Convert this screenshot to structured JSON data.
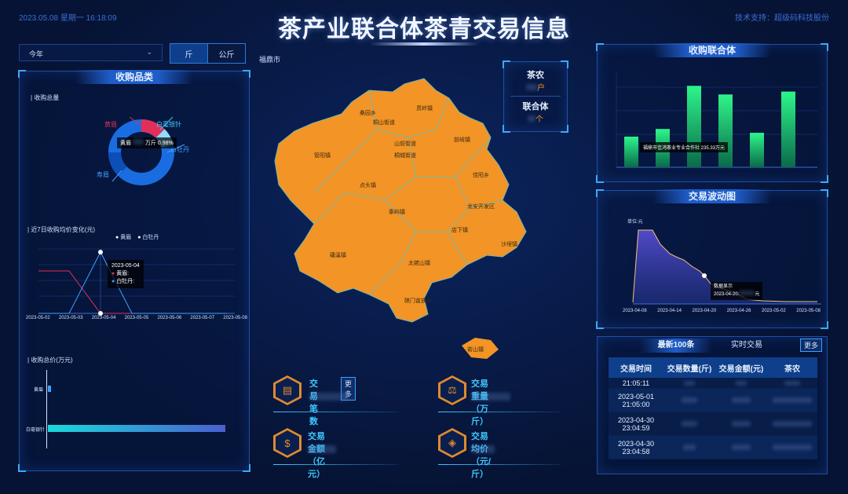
{
  "header": {
    "datetime": "2023.05.08 星期一 16:18:09",
    "title": "茶产业联合体茶青交易信息",
    "tech_support": "技术支持：超级码科技股份"
  },
  "filters": {
    "period_selected": "今年",
    "unit_tabs": [
      {
        "label": "斤",
        "active": true
      },
      {
        "label": "公斤",
        "active": false
      }
    ]
  },
  "map": {
    "city": "福鼎市",
    "fill_color": "#f29426",
    "towns": [
      "桑园乡",
      "贯岭镇",
      "磻溪镇",
      "点头镇",
      "管阳镇",
      "前岐镇",
      "佳阳乡",
      "龙安开发区",
      "店下镇",
      "沙埕镇",
      "太姥山镇",
      "硖门畲族乡",
      "秦屿镇",
      "嵛山镇",
      "桐山街道",
      "山前街道",
      "桐城街道",
      "叠石乡"
    ],
    "legend": {
      "farmer_label": "茶农",
      "farmer_unit": "户",
      "union_label": "联合体",
      "union_unit": "个"
    }
  },
  "left_panel": {
    "title": "收购品类",
    "donut": {
      "label": "收购总量",
      "tooltip": {
        "name": "黄眉",
        "unit": "万斤",
        "percent": "0.98%"
      },
      "legend_items": [
        {
          "name": "黄眉",
          "color": "#e0305a"
        },
        {
          "name": "白毫银针",
          "color": "#3fc8ff"
        },
        {
          "name": "白牡丹",
          "color": "#1a6de0"
        },
        {
          "name": "寿眉",
          "color": "#0d4fb8"
        }
      ]
    },
    "line": {
      "label": "近7日收购均价变化(元)",
      "series": [
        {
          "name": "黄眉",
          "color": "#e0305a"
        },
        {
          "name": "白牡丹",
          "color": "#3fa0ff"
        }
      ],
      "tooltip": {
        "date": "2023-05-04",
        "items": [
          "黄眉:",
          "白牡丹:"
        ]
      },
      "dates": [
        "2023-05-02",
        "2023-05-03",
        "2023-05-04",
        "2023-05-05",
        "2023-05-06",
        "2023-05-07",
        "2023-05-08"
      ]
    },
    "bar": {
      "label": "收购总价(万元)",
      "categories": [
        "黄眉",
        "白毫银针"
      ]
    }
  },
  "stats": [
    {
      "label": "交易笔数",
      "icon": "document-icon",
      "more": "更多"
    },
    {
      "label": "交易重量（万斤）",
      "icon": "weight-icon"
    },
    {
      "label": "交易金额（亿元）",
      "icon": "money-bag-icon"
    },
    {
      "label": "交易均价（元/斤）",
      "icon": "price-tag-icon"
    }
  ],
  "right_union": {
    "title": "收购联合体",
    "tooltip": "福鼎市佳鸿茶业专业合作社 235.33万元",
    "bar_values": [
      0.32,
      0.4,
      0.85,
      0.76,
      0.36,
      0.79
    ]
  },
  "right_wave": {
    "title": "交易波动图",
    "unit": "单位:元",
    "tooltip_title": "数据显示",
    "tooltip_date": "2023-04-20:",
    "tooltip_unit": "元",
    "dates": [
      "2023-04-08",
      "2023-04-14",
      "2023-04-20",
      "2023-04-26",
      "2023-05-02",
      "2023-05-08"
    ]
  },
  "right_table": {
    "tabs": [
      {
        "label": "最新100条",
        "active": true
      },
      {
        "label": "实时交易",
        "active": false
      }
    ],
    "more": "更多",
    "headers": [
      "交易时间",
      "交易数量(斤)",
      "交易金额(元)",
      "茶农"
    ],
    "rows": [
      {
        "time_line1": "",
        "time_line2": "21:05:11"
      },
      {
        "time_line1": "2023-05-01",
        "time_line2": "21:05:00"
      },
      {
        "time_line1": "2023-04-30",
        "time_line2": "23:04:59"
      },
      {
        "time_line1": "2023-04-30",
        "time_line2": "23:04:58"
      }
    ]
  }
}
